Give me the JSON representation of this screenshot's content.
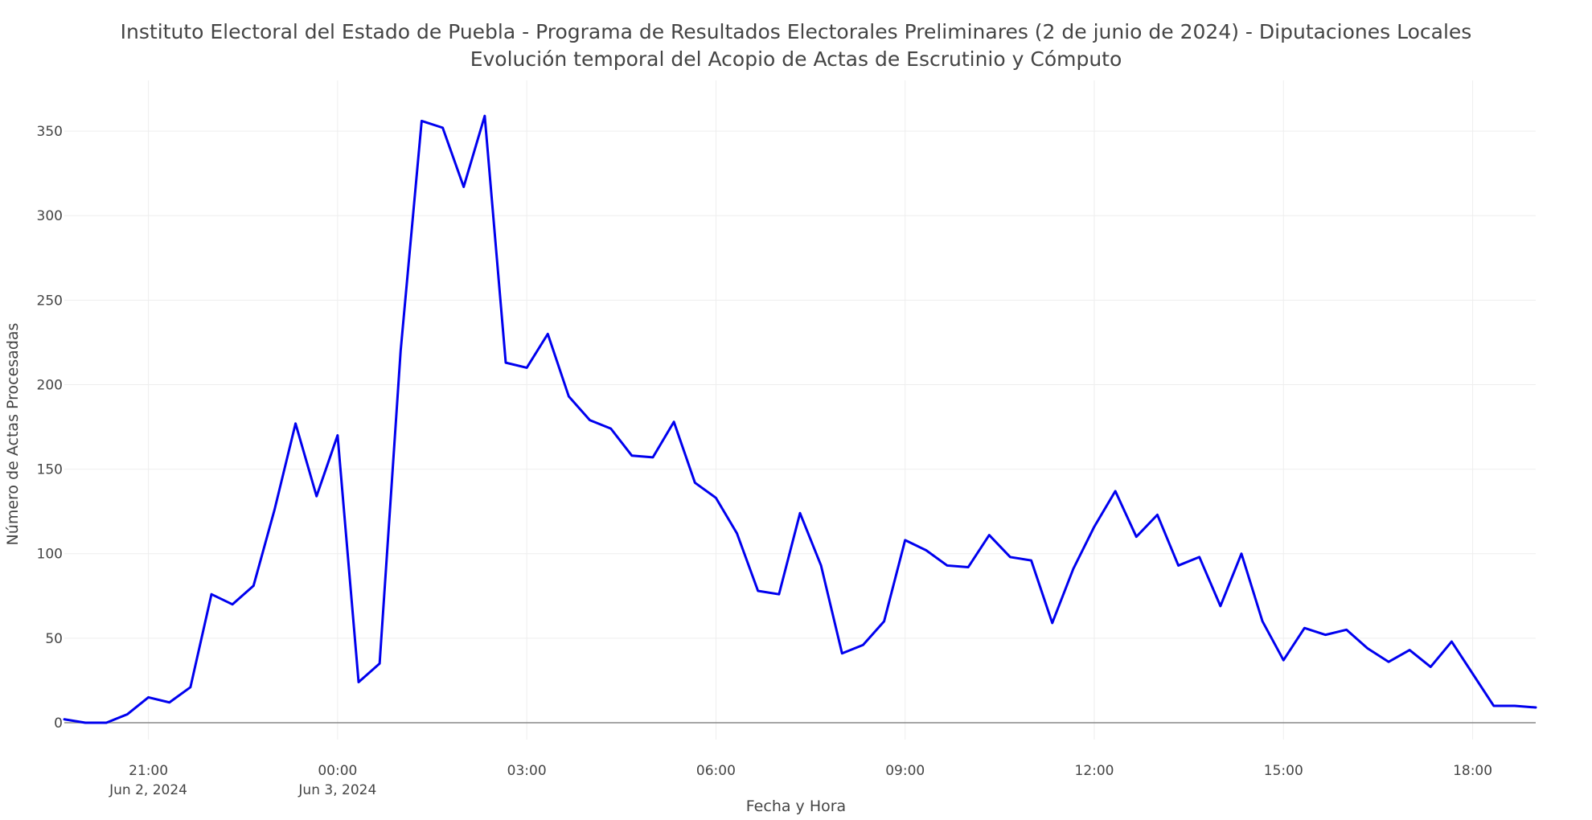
{
  "chart_data": {
    "type": "line",
    "title": "Instituto Electoral del Estado de Puebla - Programa de Resultados Electorales Preliminares (2 de junio de 2024) - Diputaciones Locales",
    "subtitle": "Evolución temporal del Acopio de Actas de Escrutinio y Cómputo",
    "xlabel": "Fecha y Hora",
    "ylabel": "Número de Actas Procesadas",
    "xlim": [
      "2024-06-02 19:40",
      "2024-06-03 19:00"
    ],
    "ylim": [
      -10,
      380
    ],
    "grid": true,
    "legend": "none",
    "line_color": "#0000ee",
    "y_ticks": [
      0,
      50,
      100,
      150,
      200,
      250,
      300,
      350
    ],
    "x_ticks": [
      {
        "time": "2024-06-02 21:00",
        "label": "21:00",
        "sublabel": "Jun 2, 2024"
      },
      {
        "time": "2024-06-03 00:00",
        "label": "00:00",
        "sublabel": "Jun 3, 2024"
      },
      {
        "time": "2024-06-03 03:00",
        "label": "03:00",
        "sublabel": ""
      },
      {
        "time": "2024-06-03 06:00",
        "label": "06:00",
        "sublabel": ""
      },
      {
        "time": "2024-06-03 09:00",
        "label": "09:00",
        "sublabel": ""
      },
      {
        "time": "2024-06-03 12:00",
        "label": "12:00",
        "sublabel": ""
      },
      {
        "time": "2024-06-03 15:00",
        "label": "15:00",
        "sublabel": ""
      },
      {
        "time": "2024-06-03 18:00",
        "label": "18:00",
        "sublabel": ""
      }
    ],
    "x": [
      "2024-06-02 19:40",
      "2024-06-02 20:00",
      "2024-06-02 20:20",
      "2024-06-02 20:40",
      "2024-06-02 21:00",
      "2024-06-02 21:20",
      "2024-06-02 21:40",
      "2024-06-02 22:00",
      "2024-06-02 22:20",
      "2024-06-02 22:40",
      "2024-06-02 23:00",
      "2024-06-02 23:20",
      "2024-06-02 23:40",
      "2024-06-03 00:00",
      "2024-06-03 00:20",
      "2024-06-03 00:40",
      "2024-06-03 01:00",
      "2024-06-03 01:20",
      "2024-06-03 01:40",
      "2024-06-03 02:00",
      "2024-06-03 02:20",
      "2024-06-03 02:40",
      "2024-06-03 03:00",
      "2024-06-03 03:20",
      "2024-06-03 03:40",
      "2024-06-03 04:00",
      "2024-06-03 04:20",
      "2024-06-03 04:40",
      "2024-06-03 05:00",
      "2024-06-03 05:20",
      "2024-06-03 05:40",
      "2024-06-03 06:00",
      "2024-06-03 06:20",
      "2024-06-03 06:40",
      "2024-06-03 07:00",
      "2024-06-03 07:20",
      "2024-06-03 07:40",
      "2024-06-03 08:00",
      "2024-06-03 08:20",
      "2024-06-03 08:40",
      "2024-06-03 09:00",
      "2024-06-03 09:20",
      "2024-06-03 09:40",
      "2024-06-03 10:00",
      "2024-06-03 10:20",
      "2024-06-03 10:40",
      "2024-06-03 11:00",
      "2024-06-03 11:20",
      "2024-06-03 11:40",
      "2024-06-03 12:00",
      "2024-06-03 12:20",
      "2024-06-03 12:40",
      "2024-06-03 13:00",
      "2024-06-03 13:20",
      "2024-06-03 13:40",
      "2024-06-03 14:00",
      "2024-06-03 14:20",
      "2024-06-03 14:40",
      "2024-06-03 15:00",
      "2024-06-03 15:20",
      "2024-06-03 15:40",
      "2024-06-03 16:00",
      "2024-06-03 16:20",
      "2024-06-03 16:40",
      "2024-06-03 17:00",
      "2024-06-03 17:20",
      "2024-06-03 17:40",
      "2024-06-03 18:00",
      "2024-06-03 18:20",
      "2024-06-03 18:40",
      "2024-06-03 19:00"
    ],
    "series": [
      {
        "values": [
          2,
          0,
          0,
          5,
          15,
          12,
          21,
          76,
          70,
          81,
          126,
          177,
          134,
          170,
          24,
          35,
          220,
          356,
          352,
          317,
          359,
          213,
          210,
          230,
          193,
          179,
          174,
          158,
          157,
          178,
          142,
          133,
          112,
          78,
          76,
          124,
          93,
          41,
          46,
          60,
          108,
          102,
          93,
          92,
          111,
          98,
          96,
          59,
          91,
          116,
          137,
          110,
          123,
          93,
          98,
          69,
          100,
          60,
          37,
          56,
          52,
          55,
          44,
          36,
          43,
          33,
          48,
          29,
          10,
          10,
          9
        ]
      }
    ]
  }
}
